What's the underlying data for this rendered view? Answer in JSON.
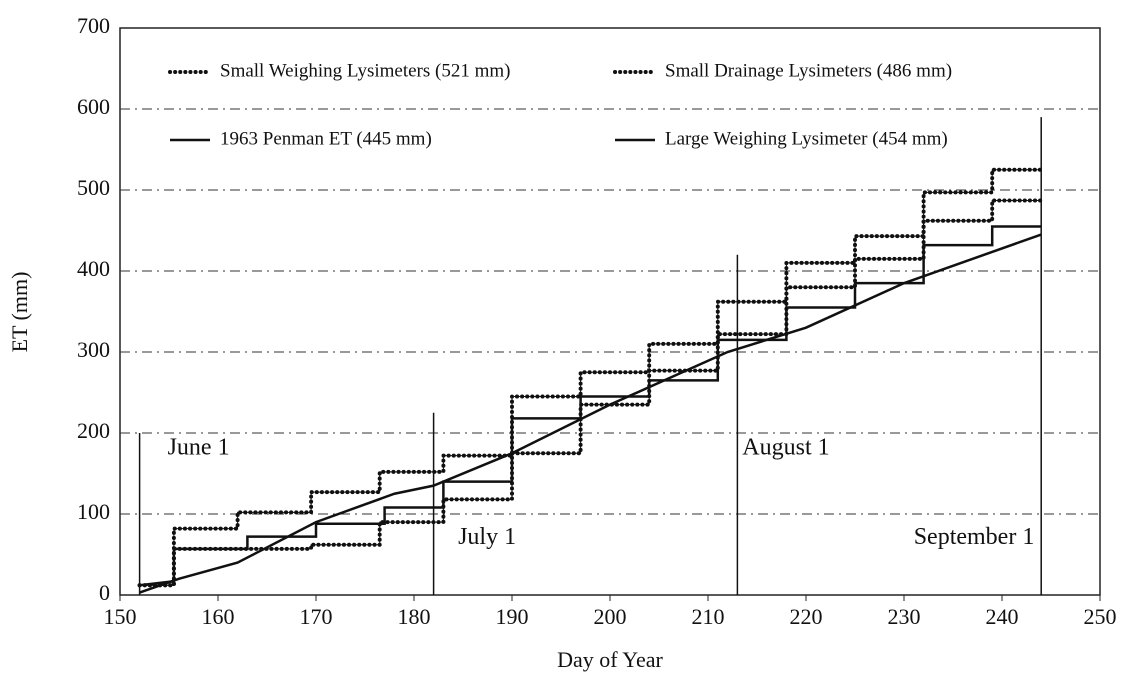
{
  "chart_data": {
    "type": "line",
    "xlabel": "Day of Year",
    "ylabel": "ET  (mm)",
    "xlim": [
      150,
      250
    ],
    "xticks": [
      150,
      160,
      170,
      180,
      190,
      200,
      210,
      220,
      230,
      240,
      250
    ],
    "ylim": [
      0,
      700
    ],
    "yticks": [
      0,
      100,
      200,
      300,
      400,
      500,
      600,
      700
    ],
    "grid": true,
    "legend": "top",
    "series": [
      {
        "name": "Small Weighing Lysimeters (521 mm)",
        "color": "#111",
        "style": "dotted",
        "x": [
          152,
          155.5,
          155.5,
          162,
          162,
          169.5,
          169.5,
          176.5,
          176.5,
          183,
          183,
          190,
          190,
          197,
          197,
          204,
          204,
          211,
          211,
          218,
          218,
          225,
          225,
          232,
          232,
          239,
          239,
          244
        ],
        "values": [
          12,
          12,
          82,
          82,
          102,
          102,
          127,
          127,
          152,
          152,
          172,
          172,
          245,
          245,
          275,
          275,
          310,
          310,
          362,
          362,
          410,
          410,
          443,
          443,
          497,
          497,
          525,
          525
        ]
      },
      {
        "name": "Small Drainage Lysimeters (486 mm)",
        "color": "#111",
        "style": "dotted",
        "x": [
          152,
          155.5,
          155.5,
          169.5,
          169.5,
          176.5,
          176.5,
          183,
          183,
          190,
          190,
          197,
          197,
          204,
          204,
          211,
          211,
          218,
          218,
          225,
          225,
          232,
          232,
          239,
          239,
          244
        ],
        "values": [
          12,
          12,
          57,
          57,
          62,
          62,
          90,
          90,
          118,
          118,
          175,
          175,
          235,
          235,
          277,
          277,
          322,
          322,
          380,
          380,
          415,
          415,
          462,
          462,
          487,
          487
        ]
      },
      {
        "name": "1963 Penman ET  (445 mm)",
        "color": "#111",
        "style": "solid",
        "x": [
          152,
          156,
          162,
          170,
          178,
          182,
          190,
          200,
          212,
          220,
          230,
          244
        ],
        "values": [
          3,
          20,
          40,
          90,
          125,
          135,
          175,
          235,
          300,
          330,
          385,
          445
        ]
      },
      {
        "name": "Large Weighing Lysimeter (454 mm)",
        "color": "#111",
        "style": "solid",
        "x": [
          152,
          155.5,
          155.5,
          163,
          163,
          170,
          170,
          177,
          177,
          183,
          183,
          190,
          190,
          197,
          197,
          204,
          204,
          211,
          211,
          218,
          218,
          225,
          225,
          232,
          232,
          239,
          239,
          244
        ],
        "values": [
          12,
          17,
          57,
          57,
          72,
          72,
          88,
          88,
          108,
          108,
          140,
          140,
          218,
          218,
          245,
          245,
          265,
          265,
          315,
          315,
          355,
          355,
          385,
          385,
          432,
          432,
          455,
          455
        ]
      }
    ],
    "annotations": [
      {
        "x": 152,
        "text": "June 1"
      },
      {
        "x": 182,
        "text": "July 1"
      },
      {
        "x": 213,
        "text": "August 1"
      },
      {
        "x": 244,
        "text": "September 1"
      }
    ]
  }
}
